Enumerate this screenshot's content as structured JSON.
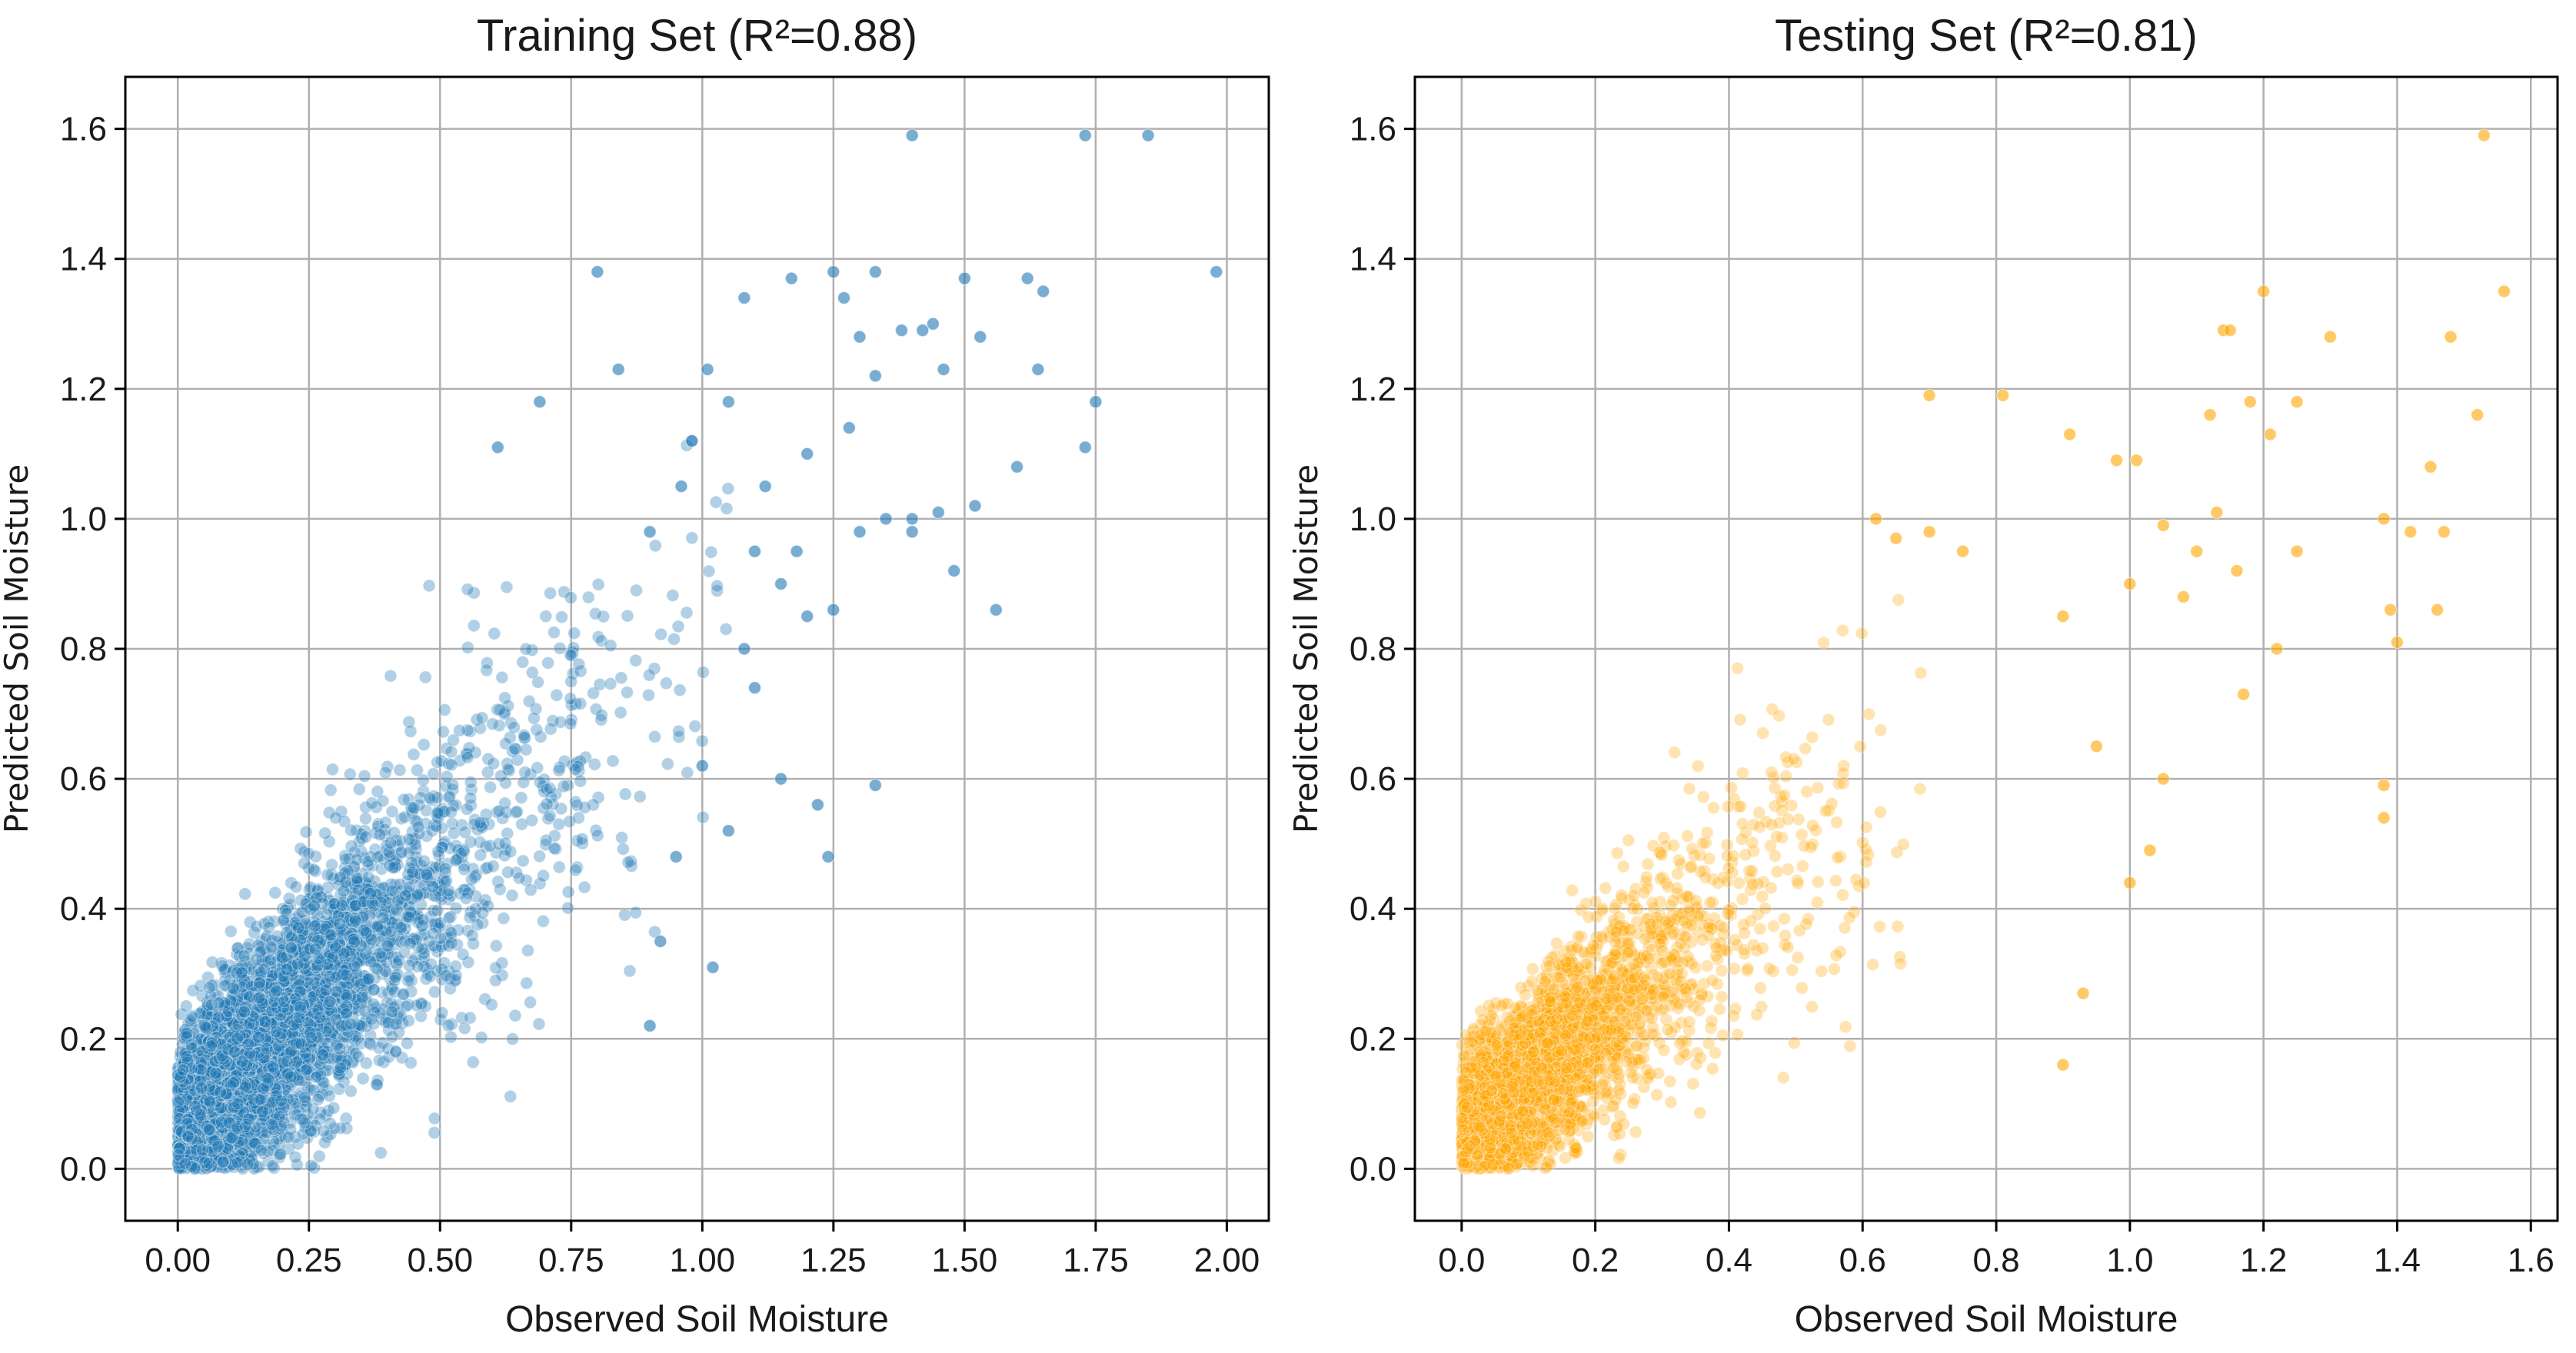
{
  "chart_data": [
    {
      "type": "scatter",
      "title": "Training Set (R²=0.88)",
      "xlabel": "Observed Soil Moisture",
      "ylabel": "Predicted Soil Moisture",
      "xlim": [
        -0.1,
        2.08
      ],
      "ylim": [
        -0.08,
        1.68
      ],
      "xticks": [
        0,
        0.25,
        0.5,
        0.75,
        1.0,
        1.25,
        1.5,
        1.75,
        2.0
      ],
      "xtick_labels": [
        "0.00",
        "0.25",
        "0.50",
        "0.75",
        "1.00",
        "1.25",
        "1.50",
        "1.75",
        "2.00"
      ],
      "yticks": [
        0,
        0.2,
        0.4,
        0.6,
        0.8,
        1.0,
        1.2,
        1.4,
        1.6
      ],
      "ytick_labels": [
        "0.0",
        "0.2",
        "0.4",
        "0.6",
        "0.8",
        "1.0",
        "1.2",
        "1.4",
        "1.6"
      ],
      "grid": true,
      "color": "#1f77b4",
      "series": [
        {
          "points": [
            [
              1.4,
              1.59
            ],
            [
              1.73,
              1.59
            ],
            [
              1.85,
              1.59
            ],
            [
              1.98,
              1.38
            ],
            [
              0.8,
              1.38
            ],
            [
              1.25,
              1.38
            ],
            [
              1.33,
              1.38
            ],
            [
              1.5,
              1.37
            ],
            [
              1.62,
              1.37
            ],
            [
              1.17,
              1.37
            ],
            [
              1.65,
              1.35
            ],
            [
              1.08,
              1.34
            ],
            [
              1.27,
              1.34
            ],
            [
              1.44,
              1.3
            ],
            [
              1.42,
              1.29
            ],
            [
              1.38,
              1.29
            ],
            [
              1.53,
              1.28
            ],
            [
              1.3,
              1.28
            ],
            [
              0.84,
              1.23
            ],
            [
              1.01,
              1.23
            ],
            [
              1.46,
              1.23
            ],
            [
              1.64,
              1.23
            ],
            [
              1.33,
              1.22
            ],
            [
              1.73,
              1.11
            ],
            [
              1.75,
              1.18
            ],
            [
              0.69,
              1.18
            ],
            [
              0.61,
              1.11
            ],
            [
              1.6,
              1.08
            ],
            [
              1.52,
              1.02
            ],
            [
              1.45,
              1.01
            ],
            [
              1.4,
              1.0
            ],
            [
              1.4,
              0.98
            ],
            [
              1.56,
              0.86
            ],
            [
              1.48,
              0.92
            ],
            [
              1.33,
              0.59
            ],
            [
              1.22,
              0.56
            ],
            [
              1.24,
              0.48
            ],
            [
              1.15,
              0.6
            ],
            [
              1.1,
              0.74
            ],
            [
              1.2,
              0.85
            ],
            [
              1.18,
              0.95
            ],
            [
              1.12,
              1.05
            ],
            [
              1.05,
              1.18
            ],
            [
              0.98,
              1.12
            ],
            [
              0.96,
              1.05
            ],
            [
              0.9,
              0.98
            ],
            [
              0.92,
              0.35
            ],
            [
              1.02,
              0.31
            ],
            [
              0.9,
              0.22
            ],
            [
              0.95,
              0.48
            ],
            [
              1.0,
              0.62
            ],
            [
              1.05,
              0.52
            ],
            [
              1.08,
              0.8
            ],
            [
              1.25,
              0.86
            ],
            [
              1.3,
              0.98
            ],
            [
              1.28,
              1.14
            ],
            [
              1.35,
              1.0
            ],
            [
              1.2,
              1.1
            ],
            [
              1.15,
              0.9
            ],
            [
              1.1,
              0.95
            ]
          ],
          "cloud_fraction": 0.35
        }
      ]
    },
    {
      "type": "scatter",
      "title": "Testing Set (R²=0.81)",
      "xlabel": "Observed Soil Moisture",
      "ylabel": "Predicted Soil Moisture",
      "xlim": [
        -0.07,
        1.64
      ],
      "ylim": [
        -0.08,
        1.68
      ],
      "xticks": [
        0,
        0.2,
        0.4,
        0.6,
        0.8,
        1.0,
        1.2,
        1.4,
        1.6
      ],
      "xtick_labels": [
        "0.0",
        "0.2",
        "0.4",
        "0.6",
        "0.8",
        "1.0",
        "1.2",
        "1.4",
        "1.6"
      ],
      "yticks": [
        0,
        0.2,
        0.4,
        0.6,
        0.8,
        1.0,
        1.2,
        1.4,
        1.6
      ],
      "ytick_labels": [
        "0.0",
        "0.2",
        "0.4",
        "0.6",
        "0.8",
        "1.0",
        "1.2",
        "1.4",
        "1.6"
      ],
      "grid": true,
      "color": "#ffa500",
      "series": [
        {
          "points": [
            [
              1.53,
              1.59
            ],
            [
              1.56,
              1.35
            ],
            [
              1.2,
              1.35
            ],
            [
              1.14,
              1.29
            ],
            [
              1.15,
              1.29
            ],
            [
              1.3,
              1.28
            ],
            [
              1.48,
              1.28
            ],
            [
              1.52,
              1.16
            ],
            [
              1.18,
              1.18
            ],
            [
              1.25,
              1.18
            ],
            [
              1.12,
              1.16
            ],
            [
              1.21,
              1.13
            ],
            [
              0.7,
              1.19
            ],
            [
              0.81,
              1.19
            ],
            [
              0.91,
              1.13
            ],
            [
              0.98,
              1.09
            ],
            [
              1.01,
              1.09
            ],
            [
              1.45,
              1.08
            ],
            [
              1.38,
              1.0
            ],
            [
              1.42,
              0.98
            ],
            [
              1.47,
              0.98
            ],
            [
              1.39,
              0.86
            ],
            [
              1.46,
              0.86
            ],
            [
              1.4,
              0.81
            ],
            [
              1.38,
              0.59
            ],
            [
              1.38,
              0.54
            ],
            [
              1.17,
              0.73
            ],
            [
              1.22,
              0.8
            ],
            [
              1.05,
              0.6
            ],
            [
              1.03,
              0.49
            ],
            [
              1.0,
              0.44
            ],
            [
              0.93,
              0.27
            ],
            [
              0.9,
              0.16
            ],
            [
              0.95,
              0.65
            ],
            [
              0.62,
              1.0
            ],
            [
              0.65,
              0.97
            ],
            [
              0.7,
              0.98
            ],
            [
              0.75,
              0.95
            ],
            [
              1.1,
              0.95
            ],
            [
              1.08,
              0.88
            ],
            [
              1.05,
              0.99
            ],
            [
              1.13,
              1.01
            ],
            [
              1.16,
              0.92
            ],
            [
              1.25,
              0.95
            ],
            [
              1.0,
              0.9
            ],
            [
              0.9,
              0.85
            ]
          ],
          "cloud_fraction": 0.3
        }
      ]
    }
  ]
}
